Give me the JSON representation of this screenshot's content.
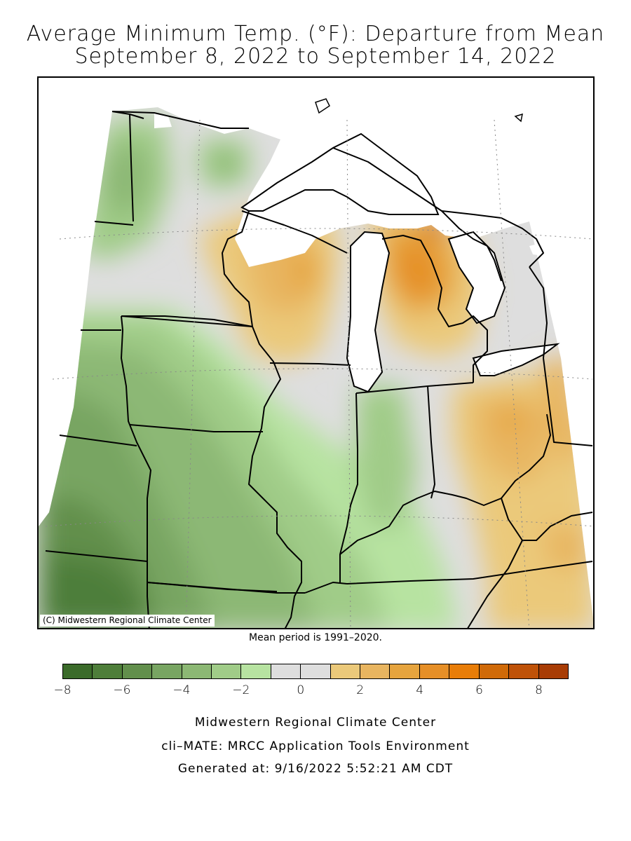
{
  "title": {
    "line1": "Average Minimum Temp. (°F): Departure from Mean",
    "line2": "September 8, 2022 to September 14, 2022"
  },
  "map": {
    "copyright": "(C) Midwestern Regional Climate Center",
    "mean_period": "Mean period is 1991–2020.",
    "colors": {
      "water": "#ffffff",
      "outside": "#ffffff",
      "borders": "#000000"
    }
  },
  "legend": {
    "bins": [
      {
        "from": -8,
        "to": -7,
        "color": "#3b6b2a"
      },
      {
        "from": -7,
        "to": -6,
        "color": "#4e7e3a"
      },
      {
        "from": -6,
        "to": -5,
        "color": "#628f4c"
      },
      {
        "from": -5,
        "to": -4,
        "color": "#78a562"
      },
      {
        "from": -4,
        "to": -3,
        "color": "#8cb874"
      },
      {
        "from": -3,
        "to": -2,
        "color": "#a0cc88"
      },
      {
        "from": -2,
        "to": -1,
        "color": "#b7e3a1"
      },
      {
        "from": -1,
        "to": 0,
        "color": "#dedede"
      },
      {
        "from": 0,
        "to": 1,
        "color": "#dedede"
      },
      {
        "from": 1,
        "to": 2,
        "color": "#ebc97a"
      },
      {
        "from": 2,
        "to": 3,
        "color": "#e8b560"
      },
      {
        "from": 3,
        "to": 4,
        "color": "#e6a43e"
      },
      {
        "from": 4,
        "to": 5,
        "color": "#e68f27"
      },
      {
        "from": 5,
        "to": 6,
        "color": "#e87d08"
      },
      {
        "from": 6,
        "to": 7,
        "color": "#d06a08"
      },
      {
        "from": 7,
        "to": 8,
        "color": "#bf5208"
      },
      {
        "from": 8,
        "to": 9,
        "color": "#a83c05"
      }
    ],
    "tick_labels": [
      "−8",
      "−6",
      "−4",
      "−2",
      "0",
      "2",
      "4",
      "6",
      "8"
    ],
    "tick_values": [
      -8,
      -6,
      -4,
      -2,
      0,
      2,
      4,
      6,
      8
    ],
    "range": [
      -8,
      9
    ]
  },
  "footer": {
    "line1": "Midwestern Regional Climate Center",
    "line2": "cli–MATE: MRCC Application Tools Environment",
    "line3": "Generated at: 9/16/2022 5:52:21 AM CDT"
  }
}
